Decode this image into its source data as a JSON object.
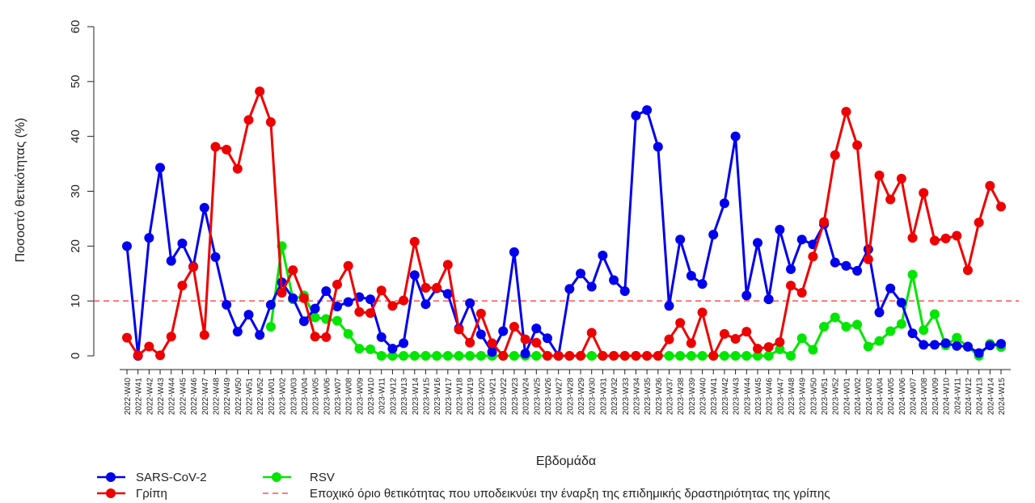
{
  "chart_data": {
    "type": "line",
    "xlabel": "Εβδομάδα",
    "ylabel": "Ποσοστό θετικότητας (%)",
    "ylim": [
      0,
      60
    ],
    "yticks": [
      0,
      10,
      20,
      30,
      40,
      50,
      60
    ],
    "threshold": 10,
    "threshold_label": "Εποχικό όριο θετικότητας που υποδεικνύει την έναρξη της επιδημικής δραστηριότητας της γρίπης",
    "legend_position": "bottom-left",
    "categories": [
      "2022-W40",
      "2022-W41",
      "2022-W42",
      "2022-W43",
      "2022-W44",
      "2022-W45",
      "2022-W46",
      "2022-W47",
      "2022-W48",
      "2022-W49",
      "2022-W50",
      "2022-W51",
      "2022-W52",
      "2023-W01",
      "2023-W02",
      "2023-W03",
      "2023-W04",
      "2023-W05",
      "2023-W06",
      "2023-W07",
      "2023-W08",
      "2023-W09",
      "2023-W10",
      "2023-W11",
      "2023-W12",
      "2023-W13",
      "2023-W14",
      "2023-W15",
      "2023-W16",
      "2023-W17",
      "2023-W18",
      "2023-W19",
      "2023-W20",
      "2023-W21",
      "2023-W22",
      "2023-W23",
      "2023-W24",
      "2023-W25",
      "2023-W26",
      "2023-W27",
      "2023-W28",
      "2023-W29",
      "2023-W30",
      "2023-W31",
      "2023-W32",
      "2023-W33",
      "2023-W34",
      "2023-W35",
      "2023-W36",
      "2023-W37",
      "2023-W38",
      "2023-W39",
      "2023-W40",
      "2023-W41",
      "2023-W42",
      "2023-W43",
      "2023-W44",
      "2023-W45",
      "2023-W46",
      "2023-W47",
      "2023-W48",
      "2023-W49",
      "2023-W50",
      "2023-W51",
      "2023-W52",
      "2024-W01",
      "2024-W02",
      "2024-W03",
      "2024-W04",
      "2024-W05",
      "2024-W06",
      "2024-W07",
      "2024-W08",
      "2024-W09",
      "2024-W10",
      "2024-W11",
      "2024-W12",
      "2024-W13",
      "2024-W14",
      "2024-W15"
    ],
    "series": [
      {
        "name": "SARS-CoV-2",
        "color": "#0000ee",
        "values": [
          20.0,
          0.0,
          21.5,
          34.3,
          17.3,
          20.5,
          16.3,
          27.0,
          18.0,
          9.3,
          4.4,
          7.5,
          3.8,
          9.3,
          13.4,
          10.5,
          6.3,
          8.6,
          11.8,
          9.0,
          9.8,
          10.7,
          10.3,
          3.4,
          1.3,
          2.3,
          14.7,
          9.4,
          12.3,
          11.3,
          5.0,
          9.6,
          3.9,
          0.7,
          4.5,
          18.9,
          0.4,
          5.0,
          3.2,
          0.0,
          12.2,
          15.0,
          12.6,
          18.3,
          13.8,
          11.8,
          43.8,
          44.8,
          38.1,
          9.1,
          21.2,
          14.6,
          13.1,
          22.1,
          27.8,
          40.0,
          11.0,
          20.6,
          10.3,
          23.0,
          15.8,
          21.2,
          20.3,
          24.0,
          17.0,
          16.4,
          15.5,
          19.4,
          7.9,
          12.3,
          9.7,
          4.1,
          2.0,
          2.0,
          2.3,
          1.8,
          1.7,
          0.5,
          1.9,
          2.2
        ]
      },
      {
        "name": "Γρίπη",
        "color": "#ee0000",
        "values": [
          3.3,
          0.1,
          1.7,
          0.1,
          3.5,
          12.8,
          16.2,
          3.8,
          38.1,
          37.6,
          34.1,
          43.0,
          48.2,
          42.6,
          11.5,
          15.6,
          10.5,
          3.5,
          3.4,
          13.0,
          16.4,
          8.0,
          7.8,
          11.9,
          9.1,
          10.1,
          20.8,
          12.4,
          12.4,
          16.6,
          4.8,
          2.4,
          7.7,
          2.3,
          0.0,
          5.3,
          3.0,
          2.4,
          0.0,
          0.0,
          0.0,
          0.0,
          4.2,
          0.0,
          0.0,
          0.0,
          0.0,
          0.0,
          0.0,
          3.0,
          6.0,
          2.3,
          7.9,
          0.0,
          4.0,
          3.1,
          4.4,
          1.3,
          1.6,
          2.5,
          12.8,
          11.5,
          18.1,
          24.4,
          36.6,
          44.5,
          38.4,
          17.6,
          32.9,
          28.5,
          32.3,
          21.5,
          29.7,
          21.0,
          21.4,
          21.9,
          15.6,
          24.3,
          31.0,
          27.2
        ]
      },
      {
        "name": "RSV",
        "color": "#00e600",
        "values": [
          null,
          null,
          null,
          null,
          null,
          null,
          null,
          null,
          null,
          null,
          null,
          null,
          null,
          5.3,
          20.0,
          10.3,
          11.0,
          7.0,
          6.7,
          6.4,
          4.0,
          1.3,
          1.2,
          0.0,
          0.0,
          0.0,
          0.0,
          0.0,
          0.0,
          0.0,
          0.0,
          0.0,
          0.0,
          0.0,
          0.0,
          0.0,
          0.0,
          0.0,
          0.0,
          0.0,
          0.0,
          0.0,
          0.0,
          0.0,
          0.0,
          0.0,
          0.0,
          0.0,
          0.0,
          0.0,
          0.0,
          0.0,
          0.0,
          0.0,
          0.0,
          0.0,
          0.0,
          0.0,
          0.0,
          1.2,
          0.0,
          3.2,
          1.1,
          5.3,
          7.0,
          5.3,
          5.7,
          1.7,
          2.7,
          4.5,
          5.8,
          14.8,
          4.7,
          7.6,
          1.9,
          3.3,
          1.6,
          0.0,
          2.2,
          1.6
        ]
      }
    ]
  }
}
